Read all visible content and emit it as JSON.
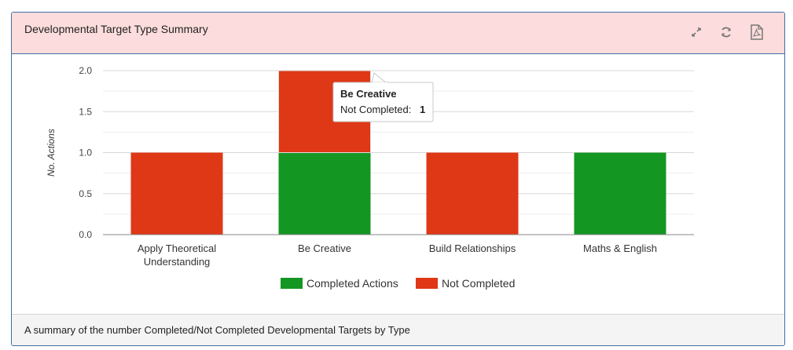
{
  "panel": {
    "title": "Developmental Target Type Summary",
    "footer": "A summary of the number Completed/Not Completed Developmental Targets by Type",
    "tools": [
      {
        "name": "expand-icon",
        "label": "expand"
      },
      {
        "name": "refresh-icon",
        "label": "refresh"
      },
      {
        "name": "pdf-icon",
        "label": "export pdf"
      }
    ]
  },
  "chart_data": {
    "type": "bar",
    "stacked": true,
    "title": "",
    "xlabel": "",
    "ylabel": "No. Actions",
    "ylim": [
      0,
      2
    ],
    "yticks": [
      "0.0",
      "0.5",
      "1.0",
      "1.5",
      "2.0"
    ],
    "ytick_values": [
      0,
      0.5,
      1,
      1.5,
      2
    ],
    "categories": [
      "Apply Theoretical Understanding",
      "Be Creative",
      "Build Relationships",
      "Maths & English"
    ],
    "category_lines": [
      [
        "Apply Theoretical",
        "Understanding"
      ],
      [
        "Be Creative"
      ],
      [
        "Build Relationships"
      ],
      [
        "Maths & English"
      ]
    ],
    "series": [
      {
        "name": "Completed Actions",
        "color": "#149623",
        "values": [
          0,
          1,
          0,
          1
        ]
      },
      {
        "name": "Not Completed",
        "color": "#de3816",
        "values": [
          1,
          1,
          1,
          0
        ]
      }
    ],
    "legend": "bottom",
    "grid": true,
    "tooltip": {
      "title": "Be Creative",
      "label": "Not Completed: ",
      "value": "1",
      "category_index": 1,
      "series_index": 1
    }
  }
}
